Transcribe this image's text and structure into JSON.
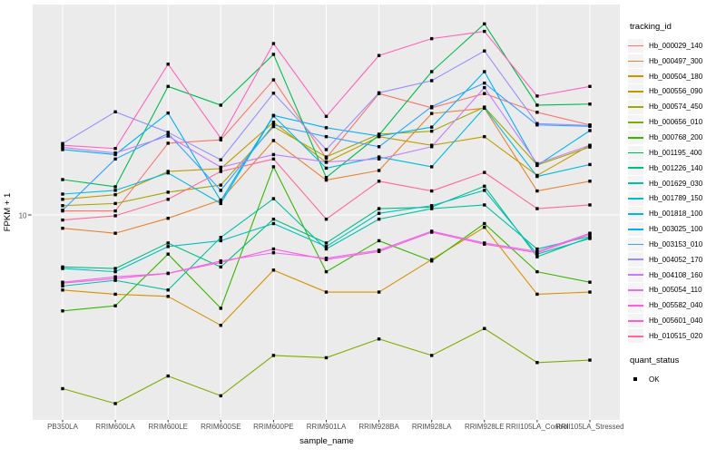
{
  "ui": {
    "y_tick_label": "10",
    "legend": {
      "tracking_title": "tracking_id",
      "quant_title": "quant_status",
      "quant_ok_label": "OK"
    }
  },
  "chart_data": {
    "type": "line",
    "title": "",
    "xlabel": "sample_name",
    "ylabel": "FPKM + 1",
    "y_scale": "log10",
    "y_breaks": [
      10
    ],
    "ylim": [
      1,
      110
    ],
    "grid": "on",
    "legend_position": "right",
    "panel_bg": "#EBEBEB",
    "grid_color": "#FFFFFF",
    "tick_text_color": "#4D4D4D",
    "point_marker": {
      "shape": "filled-square",
      "color": "#000000",
      "status_label": "OK"
    },
    "categories": [
      "PB350LA",
      "RRIM600LA",
      "RRIM600LE",
      "RRIM600SE",
      "RRIM600PE",
      "RRIM901LA",
      "RRIM928BA",
      "RRIM928LA",
      "RRIM928LE",
      "RRII105LA_Control",
      "RRII105LA_Stressed"
    ],
    "series": [
      {
        "name": "Hb_000029_140",
        "color": "#F8766D",
        "values": [
          10.5,
          10.5,
          24.0,
          25.0,
          52.0,
          20.0,
          44.0,
          37.0,
          44.0,
          35.0,
          30.0
        ]
      },
      {
        "name": "Hb_000497_300",
        "color": "#EA8331",
        "values": [
          8.5,
          8.0,
          9.6,
          12.0,
          24.8,
          15.3,
          17.2,
          34.5,
          36.8,
          13.4,
          15.1
        ]
      },
      {
        "name": "Hb_000504_180",
        "color": "#D89000",
        "values": [
          4.0,
          3.8,
          3.7,
          2.6,
          5.1,
          3.9,
          3.9,
          5.8,
          8.6,
          3.8,
          3.9
        ]
      },
      {
        "name": "Hb_000556_090",
        "color": "#C09B00",
        "values": [
          12.1,
          12.8,
          17.0,
          17.6,
          31.0,
          19.0,
          26.0,
          23.4,
          26.0,
          16.2,
          23.4
        ]
      },
      {
        "name": "Hb_000574_450",
        "color": "#A3A500",
        "values": [
          11.2,
          11.5,
          13.2,
          14.4,
          29.4,
          20.3,
          26.8,
          27.8,
          37.3,
          18.4,
          22.9
        ]
      },
      {
        "name": "Hb_000656_010",
        "color": "#7CAE00",
        "values": [
          1.2,
          1.0,
          1.4,
          1.1,
          1.8,
          1.75,
          2.2,
          1.8,
          2.5,
          1.65,
          1.7
        ]
      },
      {
        "name": "Hb_000768_200",
        "color": "#39B600",
        "values": [
          3.1,
          3.3,
          6.2,
          3.2,
          18.0,
          5.0,
          7.3,
          5.7,
          9.0,
          5.0,
          4.4
        ]
      },
      {
        "name": "Hb_001195_400",
        "color": "#00BB4E",
        "values": [
          15.4,
          14.1,
          48.0,
          38.2,
          71.0,
          15.8,
          26.5,
          57.5,
          103.0,
          38.2,
          38.7
        ]
      },
      {
        "name": "Hb_001226_140",
        "color": "#00BF7D",
        "values": [
          5.3,
          5.2,
          7.1,
          5.3,
          9.5,
          7.1,
          10.8,
          11.0,
          14.2,
          6.0,
          7.6
        ]
      },
      {
        "name": "Hb_001629_030",
        "color": "#00C1A3",
        "values": [
          4.2,
          4.5,
          4.0,
          7.6,
          12.2,
          6.6,
          9.5,
          10.8,
          11.3,
          6.6,
          7.7
        ]
      },
      {
        "name": "Hb_001789_150",
        "color": "#00BFC4",
        "values": [
          5.2,
          5.0,
          6.8,
          7.3,
          9.0,
          6.8,
          10.2,
          11.2,
          13.5,
          6.2,
          7.5
        ]
      },
      {
        "name": "Hb_001818_100",
        "color": "#00BAE0",
        "values": [
          12.9,
          13.5,
          16.7,
          11.5,
          33.5,
          17.7,
          20.3,
          18.0,
          37.0,
          16.0,
          18.5
        ]
      },
      {
        "name": "Hb_003025_100",
        "color": "#00B0F6",
        "values": [
          22.2,
          20.9,
          34.7,
          11.9,
          33.7,
          29.0,
          26.2,
          29.2,
          57.5,
          18.3,
          28.0
        ]
      },
      {
        "name": "Hb_003153_010",
        "color": "#35A2FF",
        "values": [
          10.6,
          19.8,
          27.0,
          13.5,
          30.0,
          26.0,
          23.0,
          37.5,
          50.0,
          30.0,
          29.5
        ]
      },
      {
        "name": "Hb_004052_170",
        "color": "#9590FF",
        "values": [
          23.9,
          35.2,
          27.4,
          19.6,
          44.2,
          22.2,
          44.4,
          51.5,
          74.0,
          30.5,
          29.8
        ]
      },
      {
        "name": "Hb_004108_160",
        "color": "#C77CFF",
        "values": [
          22.8,
          21.3,
          26.2,
          17.9,
          20.9,
          19.1,
          19.8,
          23.0,
          47.3,
          18.7,
          23.4
        ]
      },
      {
        "name": "Hb_005054_110",
        "color": "#E76BF3",
        "values": [
          4.4,
          4.7,
          4.9,
          5.7,
          6.3,
          5.9,
          6.5,
          8.2,
          7.1,
          6.4,
          8.0
        ]
      },
      {
        "name": "Hb_005582_040",
        "color": "#FA62DB",
        "values": [
          4.35,
          4.6,
          4.9,
          5.6,
          6.6,
          5.8,
          6.4,
          8.1,
          7.0,
          6.3,
          7.9
        ]
      },
      {
        "name": "Hb_005601_040",
        "color": "#FF62BC",
        "values": [
          23.4,
          22.5,
          63.0,
          25.5,
          81.0,
          33.3,
          70.0,
          86.0,
          94.0,
          42.7,
          48.0
        ]
      },
      {
        "name": "Hb_010515_020",
        "color": "#FF6A98",
        "values": [
          9.4,
          9.9,
          12.1,
          17.0,
          19.8,
          9.5,
          15.1,
          13.4,
          16.8,
          10.8,
          11.3
        ]
      }
    ]
  }
}
